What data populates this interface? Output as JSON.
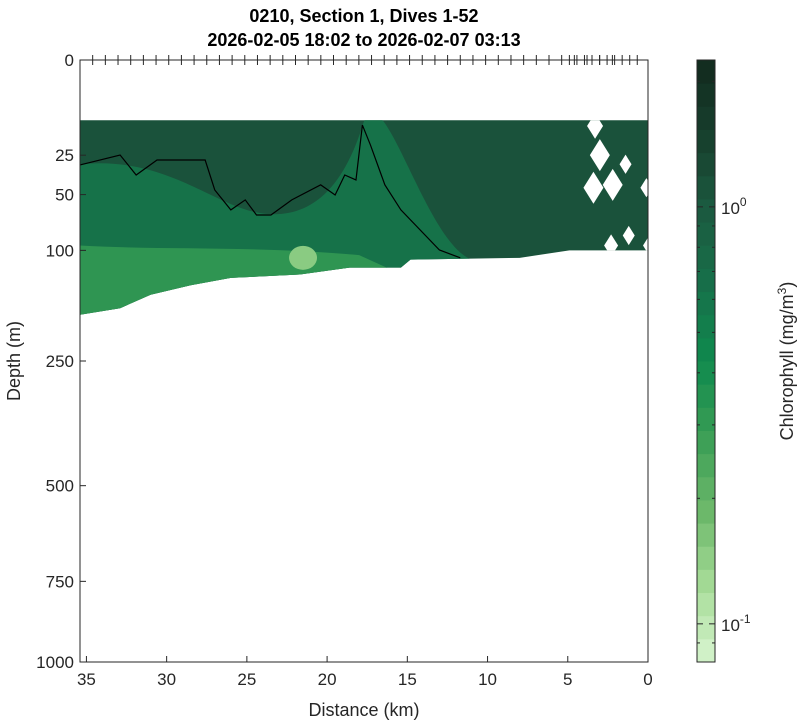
{
  "chart_data": {
    "type": "heatmap",
    "subtype": "filled-contour section",
    "title": [
      "0210, Section 1, Dives 1-52",
      "2026-02-05 18:02 to 2026-02-07 03:13"
    ],
    "xlabel": "Distance (km)",
    "ylabel": "Depth (m)",
    "xlim": [
      35.4,
      0
    ],
    "x_reversed": true,
    "xticks": [
      35,
      30,
      25,
      20,
      15,
      10,
      5,
      0
    ],
    "ylim": [
      0,
      1000
    ],
    "y_scale": "sqrt",
    "y_reversed": true,
    "yticks": [
      0,
      25,
      50,
      100,
      250,
      500,
      750,
      1000
    ],
    "grid": false,
    "data_top_depth": 10,
    "data_bottom_boundary": [
      [
        35.4,
        179
      ],
      [
        32.9,
        170
      ],
      [
        31.0,
        152
      ],
      [
        28.5,
        140
      ],
      [
        26.0,
        131
      ],
      [
        21.7,
        127
      ],
      [
        18.6,
        119
      ],
      [
        15.4,
        119
      ],
      [
        14.8,
        110
      ],
      [
        8.0,
        108
      ],
      [
        4.9,
        100
      ],
      [
        0,
        100
      ]
    ],
    "contour_line": [
      [
        35.4,
        30.4
      ],
      [
        32.9,
        24.9
      ],
      [
        31.9,
        36.5
      ],
      [
        30.6,
        27.6
      ],
      [
        27.6,
        27.6
      ],
      [
        27.0,
        46.6
      ],
      [
        26.0,
        62
      ],
      [
        25.1,
        54
      ],
      [
        24.4,
        66.3
      ],
      [
        23.5,
        66.3
      ],
      [
        22.2,
        54
      ],
      [
        20.4,
        43
      ],
      [
        19.5,
        50.3
      ],
      [
        18.9,
        36.5
      ],
      [
        18.2,
        39.7
      ],
      [
        17.8,
        11.7
      ],
      [
        17.3,
        19.9
      ],
      [
        16.4,
        43
      ],
      [
        15.4,
        62
      ],
      [
        13.0,
        99.6
      ],
      [
        11.7,
        108
      ]
    ],
    "field_description_values": {
      "upper_layer_chlorophyll": 1.1,
      "mid_layer_chlorophyll": 0.6,
      "lower_edge_chlorophyll": 0.3,
      "min_patch_chlorophyll": 0.15
    },
    "colorbar": {
      "label": "Chlorophyll (mg/m",
      "label_superscript": "3",
      "label_end": ")",
      "scale": "log",
      "range": [
        0.081,
        2.25
      ],
      "ticks": [
        {
          "value": 1,
          "base": "10",
          "exp": "0"
        },
        {
          "value": 0.1,
          "base": "10",
          "exp": "-1"
        }
      ],
      "colormap": [
        "#d8f5d0",
        "#a6dc98",
        "#6cb86a",
        "#3a9e55",
        "#0f8a4e",
        "#17704a",
        "#1b5a40",
        "#173f2d",
        "#122a1e"
      ]
    }
  }
}
